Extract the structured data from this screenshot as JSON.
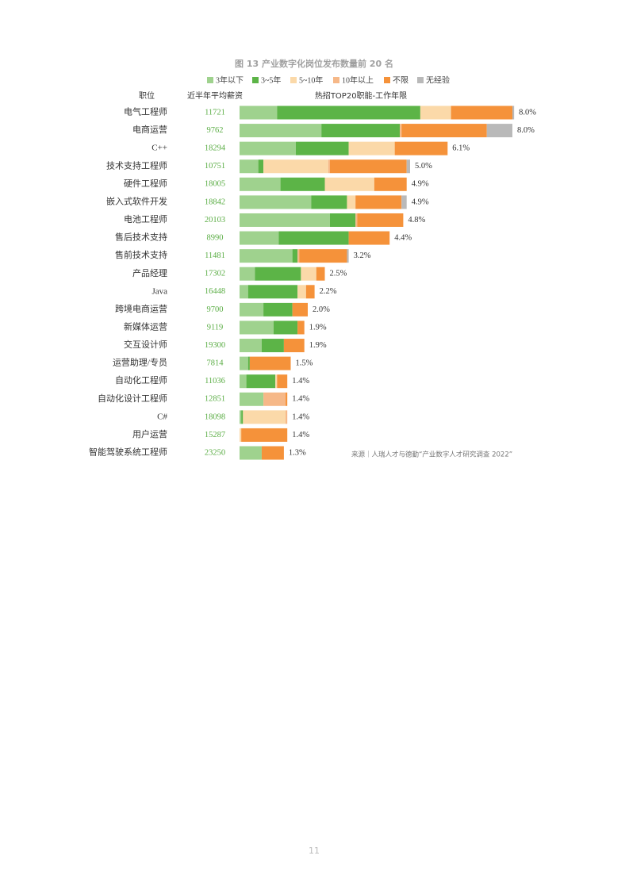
{
  "chart_data": {
    "type": "bar",
    "title": "图 13 产业数字化岗位发布数量前 20 名",
    "column_headers": [
      "职位",
      "近半年平均薪资",
      "热招TOP20职能-工作年限"
    ],
    "categories": [
      "电气工程师",
      "电商运营",
      "C++",
      "技术支持工程师",
      "硬件工程师",
      "嵌入式软件开发",
      "电池工程师",
      "售后技术支持",
      "售前技术支持",
      "产品经理",
      "Java",
      "跨境电商运营",
      "新媒体运营",
      "交互设计师",
      "运营助理/专员",
      "自动化工程师",
      "自动化设计工程师",
      "C#",
      "用户运营",
      "智能驾驶系统工程师"
    ],
    "salaries": [
      11721,
      9762,
      18294,
      10751,
      18005,
      18842,
      20103,
      8990,
      11481,
      17302,
      16448,
      9700,
      9119,
      19300,
      7814,
      11036,
      12851,
      18098,
      15287,
      23250
    ],
    "series": [
      {
        "name": "3年以下",
        "color": "#9fd28e",
        "values": [
          1.1,
          2.4,
          1.65,
          0.55,
          1.2,
          2.1,
          2.65,
          1.15,
          1.55,
          0.45,
          0.25,
          0.7,
          1.0,
          0.65,
          0.25,
          0.2,
          0.7,
          0.05,
          0,
          0.65
        ]
      },
      {
        "name": "3~5年",
        "color": "#5cb447",
        "values": [
          4.2,
          2.3,
          1.55,
          0.15,
          1.3,
          1.05,
          0.75,
          2.05,
          0.15,
          1.35,
          1.45,
          0.85,
          0.7,
          0.65,
          0.05,
          0.85,
          0,
          0.05,
          0,
          0
        ]
      },
      {
        "name": "5~10年",
        "color": "#fbd9a9",
        "values": [
          0.9,
          0,
          1.35,
          1.9,
          1.45,
          0.25,
          0,
          0,
          0,
          0.45,
          0.25,
          0,
          0,
          0,
          0,
          0.05,
          0,
          1.25,
          0.05,
          0
        ]
      },
      {
        "name": "10年以上",
        "color": "#f6b888",
        "values": [
          0,
          0.05,
          0,
          0.05,
          0,
          0,
          0.05,
          0,
          0.05,
          0,
          0,
          0,
          0,
          0,
          0,
          0,
          0.65,
          0.05,
          0,
          0
        ]
      },
      {
        "name": "不限",
        "color": "#f5923a",
        "values": [
          1.8,
          2.5,
          1.55,
          2.25,
          0.95,
          1.35,
          1.35,
          1.2,
          1.4,
          0.25,
          0.25,
          0.45,
          0.2,
          0.6,
          1.2,
          0.3,
          0.05,
          0,
          1.35,
          0.65
        ]
      },
      {
        "name": "无经验",
        "color": "#b9b9b9",
        "values": [
          0.05,
          0.75,
          0,
          0.1,
          0,
          0.15,
          0,
          0,
          0.05,
          0,
          0,
          0,
          0,
          0,
          0,
          0,
          0,
          0,
          0,
          0
        ]
      }
    ],
    "total_labels": [
      "8.0%",
      "8.0%",
      "6.1%",
      "5.0%",
      "4.9%",
      "4.9%",
      "4.8%",
      "4.4%",
      "3.2%",
      "2.5%",
      "2.2%",
      "2.0%",
      "1.9%",
      "1.9%",
      "1.5%",
      "1.4%",
      "1.4%",
      "1.4%",
      "1.4%",
      "1.3%"
    ],
    "source": "来源｜人瑞人才与德勤“产业数字人才研究调查 2022”"
  },
  "page_number": "11"
}
